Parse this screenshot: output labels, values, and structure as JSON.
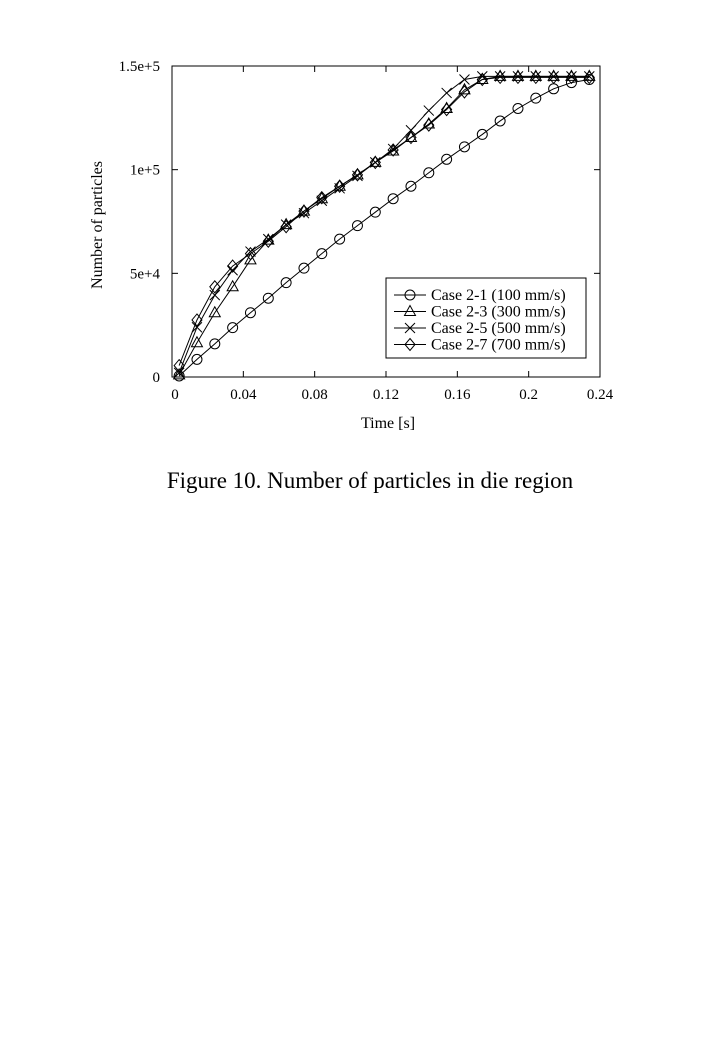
{
  "figure": {
    "caption": "Figure  10. Number of particles in die region"
  },
  "chart_data": {
    "type": "line",
    "xlabel": "Time [s]",
    "ylabel": "Number of particles",
    "xlim": [
      0,
      0.24
    ],
    "ylim": [
      0,
      150000
    ],
    "x_ticks": [
      "0",
      "0.04",
      "0.08",
      "0.12",
      "0.16",
      "0.2",
      "0.24"
    ],
    "x_tick_values": [
      0,
      0.04,
      0.08,
      0.12,
      0.16,
      0.2,
      0.24
    ],
    "y_ticks": [
      "0",
      "5e+4",
      "1e+5",
      "1.5e+5"
    ],
    "y_tick_values": [
      0,
      50000,
      100000,
      150000
    ],
    "grid": false,
    "legend_position": "lower-right",
    "series": [
      {
        "name": "Case 2-1 (100 mm/s)",
        "marker": "circle",
        "x": [
          0.004,
          0.014,
          0.024,
          0.034,
          0.044,
          0.054,
          0.064,
          0.074,
          0.084,
          0.094,
          0.104,
          0.114,
          0.124,
          0.134,
          0.144,
          0.154,
          0.164,
          0.174,
          0.184,
          0.194,
          0.204,
          0.214,
          0.224,
          0.234
        ],
        "values": [
          500,
          8500,
          16000,
          23800,
          31000,
          38000,
          45500,
          52500,
          59500,
          66500,
          73000,
          79500,
          86000,
          92000,
          98500,
          105000,
          111000,
          117000,
          123500,
          129500,
          134500,
          139000,
          142000,
          143500
        ]
      },
      {
        "name": "Case 2-3 (300 mm/s)",
        "marker": "triangle",
        "x": [
          0.004,
          0.014,
          0.024,
          0.034,
          0.044,
          0.054,
          0.064,
          0.074,
          0.084,
          0.094,
          0.104,
          0.114,
          0.124,
          0.134,
          0.144,
          0.154,
          0.164,
          0.174,
          0.184,
          0.194,
          0.204,
          0.214,
          0.224,
          0.234
        ],
        "values": [
          1000,
          16500,
          31000,
          43500,
          56500,
          66000,
          73500,
          80000,
          86000,
          92000,
          97500,
          103500,
          109000,
          115500,
          122000,
          129500,
          138500,
          143500,
          145000,
          145000,
          145000,
          145000,
          145000,
          145000
        ]
      },
      {
        "name": "Case 2-5 (500 mm/s)",
        "marker": "x",
        "x": [
          0.004,
          0.014,
          0.024,
          0.034,
          0.044,
          0.054,
          0.064,
          0.074,
          0.084,
          0.094,
          0.104,
          0.114,
          0.124,
          0.134,
          0.144,
          0.154,
          0.164,
          0.174,
          0.184,
          0.194,
          0.204,
          0.214,
          0.224,
          0.234
        ],
        "values": [
          2000,
          24000,
          39500,
          51500,
          60500,
          66500,
          73500,
          79000,
          85000,
          91000,
          97000,
          103500,
          110000,
          119000,
          128500,
          137000,
          143500,
          145000,
          145000,
          145000,
          145000,
          145000,
          145000,
          145000
        ]
      },
      {
        "name": "Case 2-7 (700 mm/s)",
        "marker": "diamond",
        "x": [
          0.004,
          0.014,
          0.024,
          0.034,
          0.044,
          0.054,
          0.064,
          0.074,
          0.084,
          0.094,
          0.104,
          0.114,
          0.124,
          0.134,
          0.144,
          0.154,
          0.164,
          0.174,
          0.184,
          0.194,
          0.204,
          0.214,
          0.224,
          0.234
        ],
        "values": [
          5500,
          27500,
          43500,
          53500,
          59500,
          65500,
          72500,
          80000,
          86500,
          92000,
          97500,
          103500,
          109500,
          115500,
          121500,
          129000,
          137500,
          143500,
          144500,
          144500,
          144500,
          144500,
          144500,
          144500
        ]
      }
    ]
  }
}
